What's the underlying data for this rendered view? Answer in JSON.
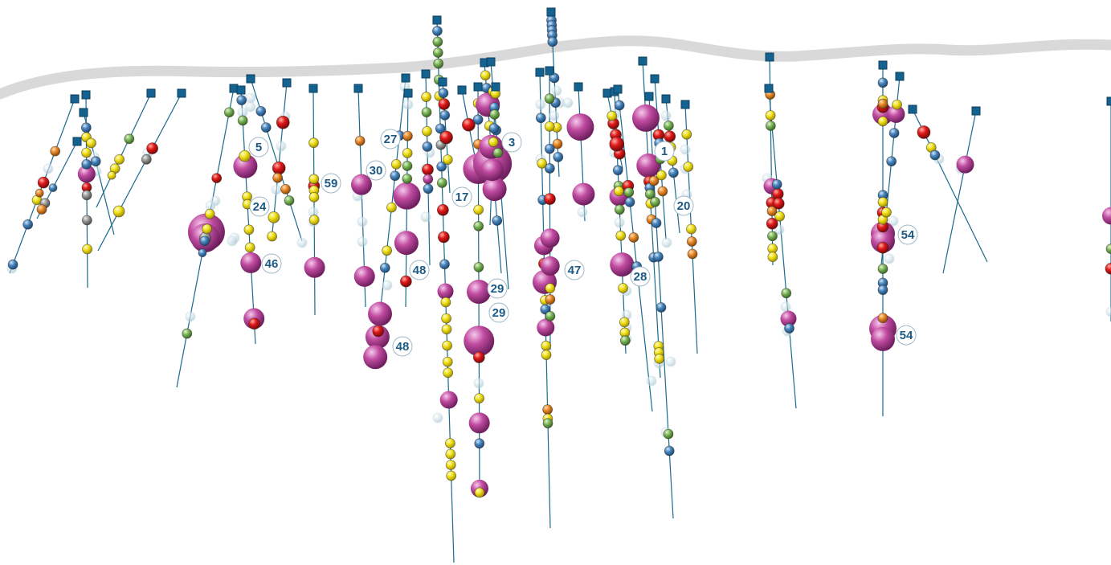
{
  "colors": {
    "surface": "#d9d9d9",
    "trace": "#1b6a8c",
    "collar": "#14628f",
    "collar_border": "#0c3f5e",
    "label_text": "#1b5a85",
    "label_ring": "#9fb8c8",
    "magenta": "#c04ba0",
    "red": "#e01818",
    "yellow": "#f2e21a",
    "orange": "#ea8a2a",
    "green": "#7cb65a",
    "blue": "#4a86bd",
    "grey": "#9a9a9a",
    "ghost": "#c8dde6"
  },
  "labels": [
    "5",
    "24",
    "46",
    "59",
    "30",
    "27",
    "48",
    "48",
    "17",
    "3",
    "29",
    "29",
    "47",
    "1",
    "20",
    "28",
    "54",
    "54"
  ]
}
